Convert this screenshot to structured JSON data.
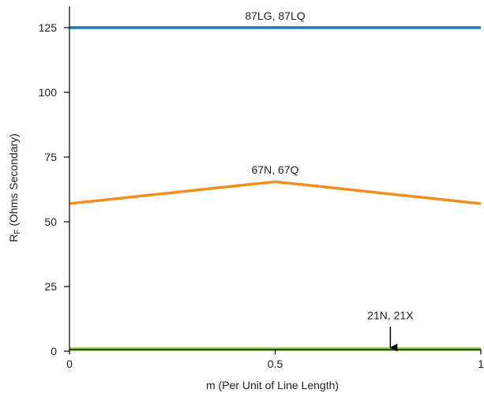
{
  "chart_data": {
    "type": "line",
    "title": "",
    "xlabel": "m (Per Unit of Line Length)",
    "ylabel_main": "R",
    "ylabel_sub": "F",
    "ylabel_rest": " (Ohms Secondary)",
    "xlim": [
      0,
      1
    ],
    "ylim": [
      0,
      130
    ],
    "xticks": [
      {
        "value": 0,
        "label": "0"
      },
      {
        "value": 0.5,
        "label": "0.5"
      },
      {
        "value": 1,
        "label": "1"
      }
    ],
    "yticks": [
      {
        "value": 0,
        "label": "0"
      },
      {
        "value": 25,
        "label": "25"
      },
      {
        "value": 50,
        "label": "50"
      },
      {
        "value": 75,
        "label": "75"
      },
      {
        "value": 100,
        "label": "100"
      },
      {
        "value": 125,
        "label": "125"
      }
    ],
    "grid": false,
    "series": [
      {
        "name": "87LG, 87LQ",
        "color": "#1f77b4",
        "x": [
          0,
          1
        ],
        "y": [
          125,
          125
        ],
        "label_at": {
          "x": 0.5,
          "y": 125
        }
      },
      {
        "name": "67N, 67Q",
        "color": "#f28e1c",
        "x": [
          0,
          0.5,
          1
        ],
        "y": [
          57,
          65.5,
          57
        ],
        "label_at": {
          "x": 0.5,
          "y": 65.5
        }
      },
      {
        "name": "21N, 21X",
        "color": "#8dc63f",
        "x": [
          0,
          1
        ],
        "y": [
          0.8,
          0.8
        ],
        "label_at": {
          "x": 0.78,
          "y": 0.8
        }
      }
    ],
    "annotations": [
      {
        "type": "arrow",
        "x": 0.78,
        "y_from": 9.5,
        "y_to": 0.8,
        "color": "#000000"
      }
    ]
  }
}
